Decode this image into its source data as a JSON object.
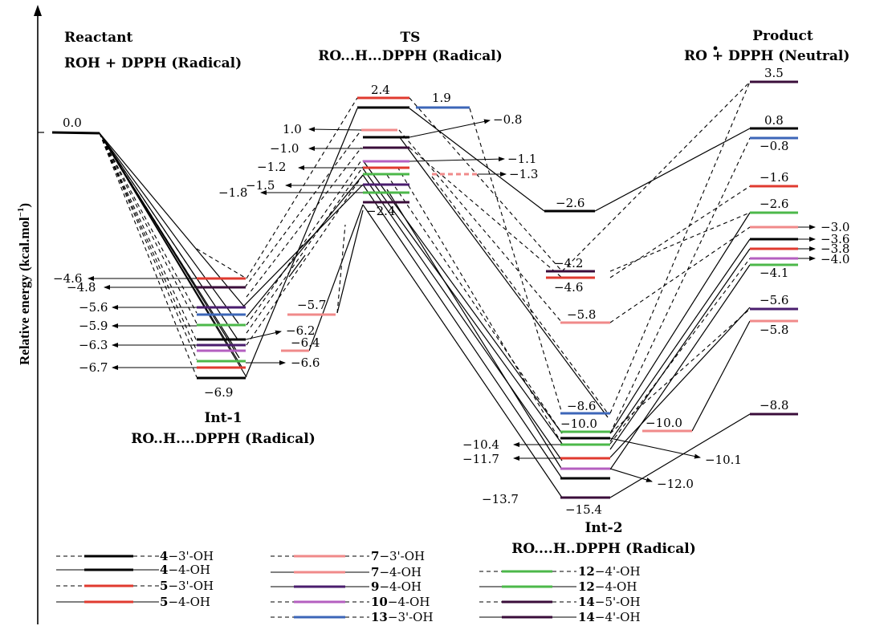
{
  "colors": {
    "black": "#000000",
    "red": "#e03a2f",
    "pink": "#f08a8a",
    "purple": "#4a1d6e",
    "violet": "#b45fc0",
    "blue": "#3c66b8",
    "green": "#4cb84a",
    "darkpurple": "#3a0d3a"
  },
  "axis": {
    "ylabel": "Relative energy (kcal.mol",
    "ylabel_sup": "-1",
    "ylabel_end": ")"
  },
  "headers": {
    "reactant_title": "Reactant",
    "reactant_sub": "ROH + DPPH (Radical)",
    "ts_title": "TS",
    "ts_sub": "RO...H...DPPH (Radical)",
    "product_title": "Product",
    "product_sub": "RO + DPPH (Neutral)",
    "int1_title": "Int-1",
    "int1_sub": "RO..H....DPPH (Radical)",
    "int2_title": "Int-2",
    "int2_sub": "RO....H..DPPH (Radical)"
  },
  "levels": {
    "reactant": [
      {
        "value": "0.0",
        "color": "black"
      }
    ],
    "int1": [
      {
        "value": "-4.6",
        "color": "red"
      },
      {
        "value": "-4.8",
        "color": "darkpurple"
      },
      {
        "value": "-5.6",
        "color": "purple"
      },
      {
        "value": "-5.9",
        "color": "green"
      },
      {
        "value": "-6.2",
        "color": "black"
      },
      {
        "value": "-6.3",
        "color": "purple"
      },
      {
        "value": "-6.6",
        "color": "green"
      },
      {
        "value": "-6.7",
        "color": "red"
      },
      {
        "value": "-6.9",
        "color": "black"
      },
      {
        "value": "-5.7",
        "color": "pink"
      },
      {
        "value": "-6.4",
        "color": "pink"
      }
    ],
    "ts": [
      {
        "value": "2.4",
        "color": "red"
      },
      {
        "value": "1.9",
        "color": "blue"
      },
      {
        "value": "1.0",
        "color": "pink"
      },
      {
        "value": "-0.8",
        "color": "black"
      },
      {
        "value": "-1.0",
        "color": "darkpurple"
      },
      {
        "value": "-1.1",
        "color": "violet"
      },
      {
        "value": "-1.2",
        "color": "red"
      },
      {
        "value": "-1.3",
        "color": "pink"
      },
      {
        "value": "-1.5",
        "color": "purple"
      },
      {
        "value": "-1.8",
        "color": "green"
      },
      {
        "value": "-2.4",
        "color": "darkpurple"
      }
    ],
    "int2": [
      {
        "value": "-2.6",
        "color": "black"
      },
      {
        "value": "-4.2",
        "color": "darkpurple"
      },
      {
        "value": "-4.6",
        "color": "red"
      },
      {
        "value": "-5.8",
        "color": "pink"
      },
      {
        "value": "-8.6",
        "color": "blue"
      },
      {
        "value": "-10.0",
        "color": "green"
      },
      {
        "value": "-10.0",
        "color": "pink"
      },
      {
        "value": "-10.1",
        "color": "black"
      },
      {
        "value": "-10.4",
        "color": "green"
      },
      {
        "value": "-11.7",
        "color": "red"
      },
      {
        "value": "-12.0",
        "color": "violet"
      },
      {
        "value": "-13.7",
        "color": "black"
      },
      {
        "value": "-15.4",
        "color": "darkpurple"
      }
    ],
    "product": [
      {
        "value": "3.5",
        "color": "darkpurple"
      },
      {
        "value": "0.8",
        "color": "black"
      },
      {
        "value": "-0.8",
        "color": "blue"
      },
      {
        "value": "-1.6",
        "color": "red"
      },
      {
        "value": "-2.6",
        "color": "green"
      },
      {
        "value": "-3.0",
        "color": "pink"
      },
      {
        "value": "-3.6",
        "color": "black"
      },
      {
        "value": "-3.8",
        "color": "red"
      },
      {
        "value": "-4.0",
        "color": "violet"
      },
      {
        "value": "-4.1",
        "color": "green"
      },
      {
        "value": "-5.6",
        "color": "purple"
      },
      {
        "value": "-5.8",
        "color": "pink"
      },
      {
        "value": "-8.8",
        "color": "darkpurple"
      }
    ]
  },
  "legend": [
    {
      "bold": "4",
      "rest": "-3'-OH",
      "color": "black",
      "dashed": true
    },
    {
      "bold": "4",
      "rest": "-4-OH",
      "color": "black",
      "dashed": false
    },
    {
      "bold": "5",
      "rest": "-3'-OH",
      "color": "red",
      "dashed": true
    },
    {
      "bold": "5",
      "rest": "-4-OH",
      "color": "red",
      "dashed": false
    },
    {
      "bold": "7",
      "rest": "-3'-OH",
      "color": "pink",
      "dashed": true
    },
    {
      "bold": "7",
      "rest": "-4-OH",
      "color": "pink",
      "dashed": false
    },
    {
      "bold": "9",
      "rest": "-4-OH",
      "color": "purple",
      "dashed": false
    },
    {
      "bold": "10",
      "rest": "-4-OH",
      "color": "violet",
      "dashed": true
    },
    {
      "bold": "13",
      "rest": "-3'-OH",
      "color": "blue",
      "dashed": true
    },
    {
      "bold": "12",
      "rest": "-4'-OH",
      "color": "green",
      "dashed": true
    },
    {
      "bold": "12",
      "rest": "-4-OH",
      "color": "green",
      "dashed": false
    },
    {
      "bold": "14",
      "rest": "-5'-OH",
      "color": "darkpurple",
      "dashed": true
    },
    {
      "bold": "14",
      "rest": "-4'-OH",
      "color": "darkpurple",
      "dashed": false
    }
  ]
}
